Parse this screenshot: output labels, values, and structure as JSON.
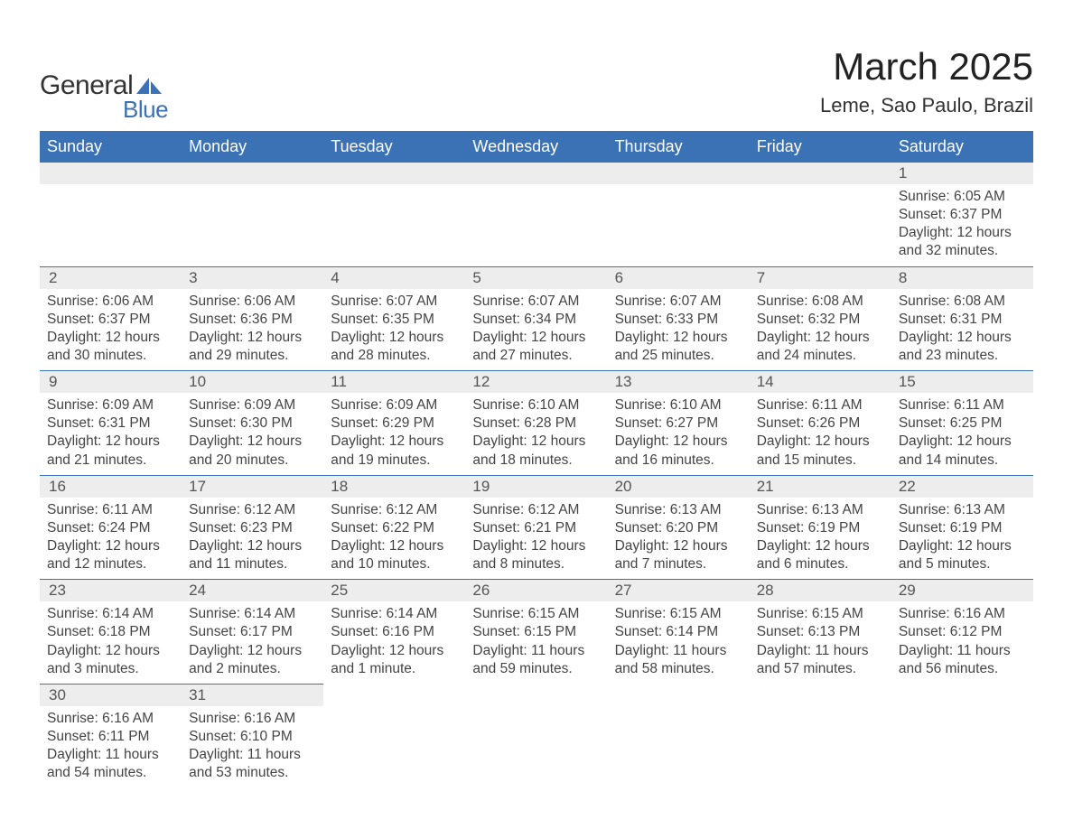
{
  "logo": {
    "text_general": "General",
    "text_blue": "Blue",
    "shape_color": "#3a72b5"
  },
  "title": {
    "month": "March 2025",
    "location": "Leme, Sao Paulo, Brazil",
    "month_fontsize": 42,
    "location_fontsize": 22,
    "color": "#222222"
  },
  "calendar": {
    "header_bg": "#3a72b5",
    "header_fg": "#ffffff",
    "daybar_bg": "#ededed",
    "daybar_fg": "#555555",
    "border_color": "#3a72b5",
    "text_color": "#444444",
    "background_color": "#ffffff",
    "columns": [
      "Sunday",
      "Monday",
      "Tuesday",
      "Wednesday",
      "Thursday",
      "Friday",
      "Saturday"
    ],
    "weeks": [
      [
        null,
        null,
        null,
        null,
        null,
        null,
        {
          "n": "1",
          "sunrise": "6:05 AM",
          "sunset": "6:37 PM",
          "daylight": "12 hours and 32 minutes."
        }
      ],
      [
        {
          "n": "2",
          "sunrise": "6:06 AM",
          "sunset": "6:37 PM",
          "daylight": "12 hours and 30 minutes."
        },
        {
          "n": "3",
          "sunrise": "6:06 AM",
          "sunset": "6:36 PM",
          "daylight": "12 hours and 29 minutes."
        },
        {
          "n": "4",
          "sunrise": "6:07 AM",
          "sunset": "6:35 PM",
          "daylight": "12 hours and 28 minutes."
        },
        {
          "n": "5",
          "sunrise": "6:07 AM",
          "sunset": "6:34 PM",
          "daylight": "12 hours and 27 minutes."
        },
        {
          "n": "6",
          "sunrise": "6:07 AM",
          "sunset": "6:33 PM",
          "daylight": "12 hours and 25 minutes."
        },
        {
          "n": "7",
          "sunrise": "6:08 AM",
          "sunset": "6:32 PM",
          "daylight": "12 hours and 24 minutes."
        },
        {
          "n": "8",
          "sunrise": "6:08 AM",
          "sunset": "6:31 PM",
          "daylight": "12 hours and 23 minutes."
        }
      ],
      [
        {
          "n": "9",
          "sunrise": "6:09 AM",
          "sunset": "6:31 PM",
          "daylight": "12 hours and 21 minutes."
        },
        {
          "n": "10",
          "sunrise": "6:09 AM",
          "sunset": "6:30 PM",
          "daylight": "12 hours and 20 minutes."
        },
        {
          "n": "11",
          "sunrise": "6:09 AM",
          "sunset": "6:29 PM",
          "daylight": "12 hours and 19 minutes."
        },
        {
          "n": "12",
          "sunrise": "6:10 AM",
          "sunset": "6:28 PM",
          "daylight": "12 hours and 18 minutes."
        },
        {
          "n": "13",
          "sunrise": "6:10 AM",
          "sunset": "6:27 PM",
          "daylight": "12 hours and 16 minutes."
        },
        {
          "n": "14",
          "sunrise": "6:11 AM",
          "sunset": "6:26 PM",
          "daylight": "12 hours and 15 minutes."
        },
        {
          "n": "15",
          "sunrise": "6:11 AM",
          "sunset": "6:25 PM",
          "daylight": "12 hours and 14 minutes."
        }
      ],
      [
        {
          "n": "16",
          "sunrise": "6:11 AM",
          "sunset": "6:24 PM",
          "daylight": "12 hours and 12 minutes."
        },
        {
          "n": "17",
          "sunrise": "6:12 AM",
          "sunset": "6:23 PM",
          "daylight": "12 hours and 11 minutes."
        },
        {
          "n": "18",
          "sunrise": "6:12 AM",
          "sunset": "6:22 PM",
          "daylight": "12 hours and 10 minutes."
        },
        {
          "n": "19",
          "sunrise": "6:12 AM",
          "sunset": "6:21 PM",
          "daylight": "12 hours and 8 minutes."
        },
        {
          "n": "20",
          "sunrise": "6:13 AM",
          "sunset": "6:20 PM",
          "daylight": "12 hours and 7 minutes."
        },
        {
          "n": "21",
          "sunrise": "6:13 AM",
          "sunset": "6:19 PM",
          "daylight": "12 hours and 6 minutes."
        },
        {
          "n": "22",
          "sunrise": "6:13 AM",
          "sunset": "6:19 PM",
          "daylight": "12 hours and 5 minutes."
        }
      ],
      [
        {
          "n": "23",
          "sunrise": "6:14 AM",
          "sunset": "6:18 PM",
          "daylight": "12 hours and 3 minutes."
        },
        {
          "n": "24",
          "sunrise": "6:14 AM",
          "sunset": "6:17 PM",
          "daylight": "12 hours and 2 minutes."
        },
        {
          "n": "25",
          "sunrise": "6:14 AM",
          "sunset": "6:16 PM",
          "daylight": "12 hours and 1 minute."
        },
        {
          "n": "26",
          "sunrise": "6:15 AM",
          "sunset": "6:15 PM",
          "daylight": "11 hours and 59 minutes."
        },
        {
          "n": "27",
          "sunrise": "6:15 AM",
          "sunset": "6:14 PM",
          "daylight": "11 hours and 58 minutes."
        },
        {
          "n": "28",
          "sunrise": "6:15 AM",
          "sunset": "6:13 PM",
          "daylight": "11 hours and 57 minutes."
        },
        {
          "n": "29",
          "sunrise": "6:16 AM",
          "sunset": "6:12 PM",
          "daylight": "11 hours and 56 minutes."
        }
      ],
      [
        {
          "n": "30",
          "sunrise": "6:16 AM",
          "sunset": "6:11 PM",
          "daylight": "11 hours and 54 minutes."
        },
        {
          "n": "31",
          "sunrise": "6:16 AM",
          "sunset": "6:10 PM",
          "daylight": "11 hours and 53 minutes."
        },
        null,
        null,
        null,
        null,
        null
      ]
    ],
    "labels": {
      "sunrise": "Sunrise: ",
      "sunset": "Sunset: ",
      "daylight": "Daylight: "
    }
  }
}
